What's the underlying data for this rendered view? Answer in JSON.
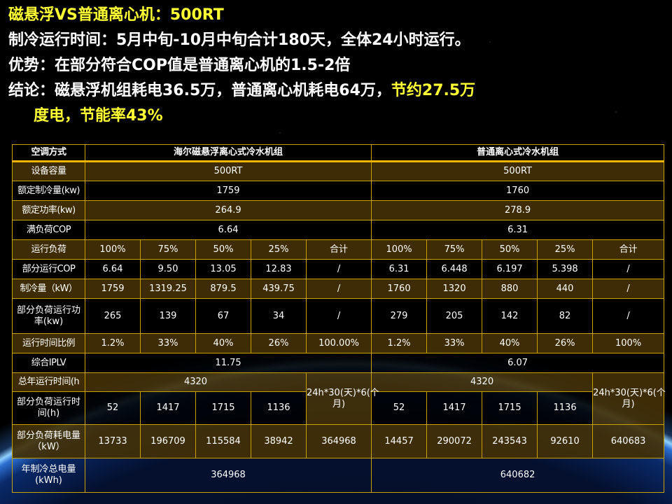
{
  "colors": {
    "title": "#ffff33",
    "text": "#ffffff",
    "grid": "#c9a100",
    "row_shade": "#423006"
  },
  "heading": {
    "title": "磁悬浮VS普通离心机：500RT",
    "line1": "制冷运行时间：5月中旬-10月中旬合计180天，全体24小时运行。",
    "line2": "优势：在部分符合COP值是普通离心机的1.5-2倍",
    "line3_white": "结论：磁悬浮机组耗电36.5万，普通离心机耗电64万，",
    "line3_yellow": "节约27.5万",
    "line4_yellow": "度电，节能率43%"
  },
  "table": {
    "rows": [
      [
        "空调方式",
        "海尔磁悬浮离心式冷水机组",
        "普通离心式冷水机组"
      ],
      [
        "设备容量",
        "500RT",
        "500RT"
      ],
      [
        "额定制冷量(kw)",
        "1759",
        "1760"
      ],
      [
        "额定功率(kw)",
        "264.9",
        "278.9"
      ],
      [
        "满负荷COP",
        "6.64",
        "6.31"
      ],
      [
        "运行负荷",
        "100%",
        "75%",
        "50%",
        "25%",
        "合计",
        "100%",
        "75%",
        "50%",
        "25%",
        "合计"
      ],
      [
        "部分运行COP",
        "6.64",
        "9.50",
        "13.05",
        "12.83",
        "/",
        "6.31",
        "6.448",
        "6.197",
        "5.398",
        "/"
      ],
      [
        "制冷量（kW）",
        "1759",
        "1319.25",
        "879.5",
        "439.75",
        "/",
        "1760",
        "1320",
        "880",
        "440",
        "/"
      ],
      [
        "部分负荷运行功率(kw)",
        "265",
        "139",
        "67",
        "34",
        "/",
        "279",
        "205",
        "142",
        "82",
        "/"
      ],
      [
        "运行时间比例",
        "1.2%",
        "33%",
        "40%",
        "26%",
        "100.00%",
        "1.2%",
        "33%",
        "40%",
        "26%",
        "100%"
      ],
      [
        "综合IPLV",
        "11.75",
        "6.07"
      ],
      [
        "总年运行时间(h",
        "4320",
        "24h*30(天)*6(个月)",
        "4320",
        "24h*30(天)*6(个月)"
      ],
      [
        "部分负荷运行时间(h)",
        "52",
        "1417",
        "1715",
        "1136",
        "52",
        "1417",
        "1715",
        "1136"
      ],
      [
        "部分负荷耗电量（kW）",
        "13733",
        "196709",
        "115584",
        "38942",
        "364968",
        "14457",
        "290072",
        "243543",
        "92610",
        "640683"
      ],
      [
        "年制冷总电量(kWh)",
        "364968",
        "640682"
      ]
    ]
  }
}
